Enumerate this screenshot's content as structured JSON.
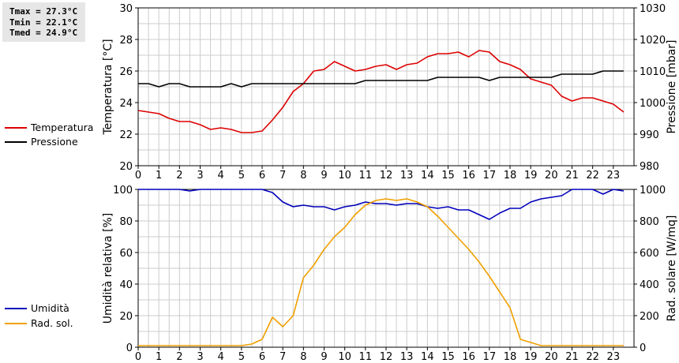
{
  "stats": {
    "tmax": "Tmax = 27.3°C",
    "tmin": "Tmin = 22.1°C",
    "tmed": "Tmed = 24.9°C"
  },
  "colors": {
    "temperature": "#dd0000",
    "pressure": "#000000",
    "humidity": "#0000bb",
    "solar": "#f0a000",
    "grid": "#cccccc"
  },
  "legend": {
    "top": [
      {
        "label": "Temperatura",
        "color": "#dd0000"
      },
      {
        "label": "Pressione",
        "color": "#000000"
      }
    ],
    "bottom": [
      {
        "label": "Umidità",
        "color": "#0000bb"
      },
      {
        "label": "Rad. sol.",
        "color": "#f0a000"
      }
    ]
  },
  "chart_data": [
    {
      "type": "line",
      "grid": true,
      "xlim": [
        0,
        24
      ],
      "xticks": [
        0,
        1,
        2,
        3,
        4,
        5,
        6,
        7,
        8,
        9,
        10,
        11,
        12,
        13,
        14,
        15,
        16,
        17,
        18,
        19,
        20,
        21,
        22,
        23
      ],
      "ylabel_left": "Temperatura [°C]",
      "ylim_left": [
        20,
        30
      ],
      "yticks_left": [
        20,
        22,
        24,
        26,
        28,
        30
      ],
      "ylabel_right": "Pressione [mbar]",
      "ylim_right": [
        980,
        1030
      ],
      "yticks_right": [
        980,
        990,
        1000,
        1010,
        1020,
        1030
      ],
      "series": [
        {
          "name": "Temperatura",
          "axis": "left",
          "color": "#dd0000",
          "x": [
            0,
            0.5,
            1,
            1.5,
            2,
            2.5,
            3,
            3.5,
            4,
            4.5,
            5,
            5.5,
            6,
            6.5,
            7,
            7.5,
            8,
            8.5,
            9,
            9.5,
            10,
            10.5,
            11,
            11.5,
            12,
            12.5,
            13,
            13.5,
            14,
            14.5,
            15,
            15.5,
            16,
            16.5,
            17,
            17.5,
            18,
            18.5,
            19,
            19.5,
            20,
            20.5,
            21,
            21.5,
            22,
            22.5,
            23,
            23.5
          ],
          "y": [
            23.5,
            23.4,
            23.3,
            23.0,
            22.8,
            22.8,
            22.6,
            22.3,
            22.4,
            22.3,
            22.1,
            22.1,
            22.2,
            22.9,
            23.7,
            24.7,
            25.2,
            26.0,
            26.1,
            26.6,
            26.3,
            26.0,
            26.1,
            26.3,
            26.4,
            26.1,
            26.4,
            26.5,
            26.9,
            27.1,
            27.1,
            27.2,
            26.9,
            27.3,
            27.2,
            26.6,
            26.4,
            26.1,
            25.5,
            25.3,
            25.1,
            24.4,
            24.1,
            24.3,
            24.3,
            24.1,
            23.9,
            23.4
          ]
        },
        {
          "name": "Pressione",
          "axis": "right",
          "color": "#000000",
          "x": [
            0,
            0.5,
            1,
            1.5,
            2,
            2.5,
            3,
            3.5,
            4,
            4.5,
            5,
            5.5,
            6,
            6.5,
            7,
            7.5,
            8,
            8.5,
            9,
            9.5,
            10,
            10.5,
            11,
            11.5,
            12,
            12.5,
            13,
            13.5,
            14,
            14.5,
            15,
            15.5,
            16,
            16.5,
            17,
            17.5,
            18,
            18.5,
            19,
            19.5,
            20,
            20.5,
            21,
            21.5,
            22,
            22.5,
            23,
            23.5
          ],
          "y": [
            1006,
            1006,
            1005,
            1006,
            1006,
            1005,
            1005,
            1005,
            1005,
            1006,
            1005,
            1006,
            1006,
            1006,
            1006,
            1006,
            1006,
            1006,
            1006,
            1006,
            1006,
            1006,
            1007,
            1007,
            1007,
            1007,
            1007,
            1007,
            1007,
            1008,
            1008,
            1008,
            1008,
            1008,
            1007,
            1008,
            1008,
            1008,
            1008,
            1008,
            1008,
            1009,
            1009,
            1009,
            1009,
            1010,
            1010,
            1010
          ]
        }
      ]
    },
    {
      "type": "line",
      "grid": true,
      "xlim": [
        0,
        24
      ],
      "xticks": [
        0,
        1,
        2,
        3,
        4,
        5,
        6,
        7,
        8,
        9,
        10,
        11,
        12,
        13,
        14,
        15,
        16,
        17,
        18,
        19,
        20,
        21,
        22,
        23
      ],
      "ylabel_left": "Umidità relativa [%]",
      "ylim_left": [
        0,
        100
      ],
      "yticks_left": [
        0,
        20,
        40,
        60,
        80,
        100
      ],
      "ylabel_right": "Rad. solare [W/mq]",
      "ylim_right": [
        0,
        1000
      ],
      "yticks_right": [
        0,
        200,
        400,
        600,
        800,
        1000
      ],
      "series": [
        {
          "name": "Umidità",
          "axis": "left",
          "color": "#0000bb",
          "x": [
            0,
            0.5,
            1,
            1.5,
            2,
            2.5,
            3,
            3.5,
            4,
            4.5,
            5,
            5.5,
            6,
            6.5,
            7,
            7.5,
            8,
            8.5,
            9,
            9.5,
            10,
            10.5,
            11,
            11.5,
            12,
            12.5,
            13,
            13.5,
            14,
            14.5,
            15,
            15.5,
            16,
            16.5,
            17,
            17.5,
            18,
            18.5,
            19,
            19.5,
            20,
            20.5,
            21,
            21.5,
            22,
            22.5,
            23,
            23.5
          ],
          "y": [
            100,
            100,
            100,
            100,
            100,
            99,
            100,
            100,
            100,
            100,
            100,
            100,
            100,
            98,
            92,
            89,
            90,
            89,
            89,
            87,
            89,
            90,
            92,
            91,
            91,
            90,
            91,
            91,
            89,
            88,
            89,
            87,
            87,
            84,
            81,
            85,
            88,
            88,
            92,
            94,
            95,
            96,
            100,
            100,
            100,
            97,
            100,
            99
          ]
        },
        {
          "name": "Rad. sol.",
          "axis": "right",
          "color": "#f0a000",
          "x": [
            0,
            0.5,
            1,
            1.5,
            2,
            2.5,
            3,
            3.5,
            4,
            4.5,
            5,
            5.5,
            6,
            6.5,
            7,
            7.5,
            8,
            8.5,
            9,
            9.5,
            10,
            10.5,
            11,
            11.5,
            12,
            12.5,
            13,
            13.5,
            14,
            14.5,
            15,
            15.5,
            16,
            16.5,
            17,
            17.5,
            18,
            18.5,
            19,
            19.5,
            20,
            20.5,
            21,
            21.5,
            22,
            22.5,
            23,
            23.5
          ],
          "y": [
            10,
            10,
            10,
            10,
            10,
            10,
            10,
            10,
            10,
            10,
            10,
            20,
            50,
            190,
            130,
            200,
            440,
            520,
            620,
            700,
            760,
            840,
            900,
            930,
            940,
            930,
            940,
            920,
            890,
            830,
            760,
            690,
            620,
            540,
            450,
            350,
            250,
            50,
            30,
            10,
            10,
            10,
            10,
            10,
            10,
            10,
            10,
            10
          ]
        }
      ]
    }
  ]
}
